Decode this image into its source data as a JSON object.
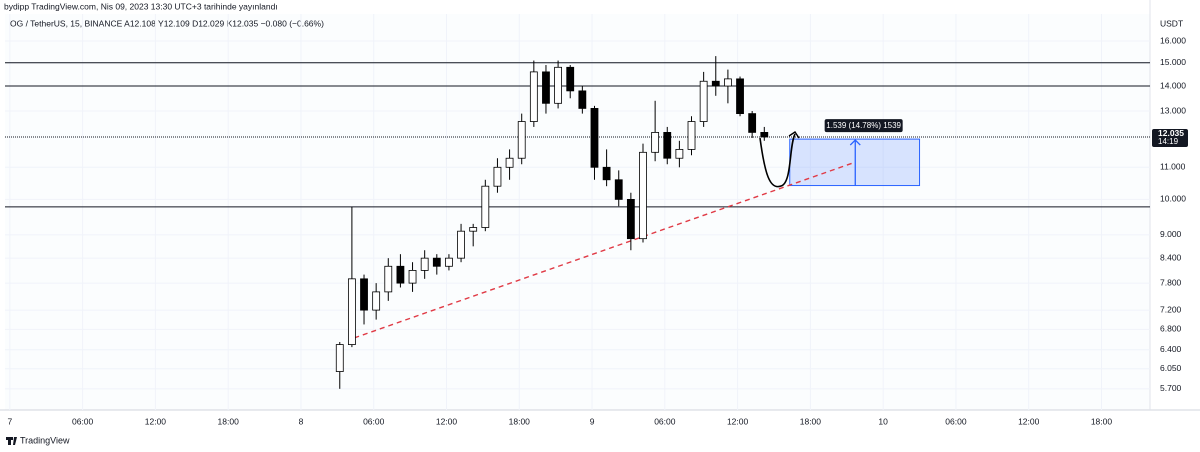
{
  "header": {
    "publisher": "bydipp TradingView.com, Nis 09, 2023 13:30 UTC+3 tarihinde yayınlandı",
    "symbol_line": "OG / TetherUS, 15, BINANCE  A12.108 Y12.109 D12.029 K12.035 −0.080 (−0.66%)"
  },
  "chart_data": {
    "type": "candlestick",
    "currency": "USDT",
    "log": true,
    "grid": true,
    "up_color": "#ffffff",
    "down_color": "#000000",
    "x": [
      27.2,
      28.2,
      29.2,
      30.2,
      31.2,
      32.2,
      33.2,
      34.2,
      35.2,
      36.2,
      37.2,
      38.2,
      39.2,
      40.2,
      41.2,
      42.2,
      43.2,
      44.2,
      45.2,
      46.2,
      47.2,
      48.2,
      49.2,
      50.2,
      51.2,
      52.2,
      53.2,
      54.2,
      55.2,
      56.2,
      57.2,
      58.2,
      59.2,
      60.2,
      61.2,
      62.2
    ],
    "open": [
      6.0,
      6.5,
      7.9,
      7.2,
      7.6,
      8.2,
      7.8,
      8.1,
      8.4,
      8.2,
      8.4,
      9.1,
      9.2,
      10.4,
      11.0,
      11.3,
      12.6,
      14.6,
      13.3,
      14.8,
      13.8,
      13.1,
      11.0,
      10.6,
      10.0,
      8.9,
      11.5,
      12.2,
      11.3,
      11.6,
      12.6,
      14.2,
      14.0,
      14.3,
      12.9,
      12.2
    ],
    "high": [
      6.55,
      9.78,
      8.0,
      7.8,
      8.4,
      8.5,
      8.3,
      8.6,
      8.5,
      8.5,
      9.3,
      9.3,
      10.6,
      11.3,
      11.6,
      12.9,
      15.1,
      14.9,
      15.1,
      14.9,
      14.0,
      13.2,
      11.6,
      10.9,
      10.2,
      11.8,
      13.4,
      12.4,
      11.9,
      12.8,
      14.6,
      15.3,
      14.7,
      14.4,
      13.0,
      12.4
    ],
    "low": [
      5.7,
      6.45,
      6.9,
      7.0,
      7.4,
      7.7,
      7.6,
      7.9,
      8.0,
      8.1,
      8.3,
      8.7,
      9.1,
      10.2,
      10.6,
      11.1,
      12.4,
      12.9,
      13.1,
      13.5,
      12.9,
      10.6,
      10.4,
      9.8,
      8.6,
      8.8,
      11.2,
      11.1,
      11.0,
      11.4,
      12.4,
      13.6,
      13.3,
      12.8,
      12.0,
      11.9
    ],
    "close": [
      6.5,
      7.9,
      7.2,
      7.6,
      8.2,
      7.8,
      8.1,
      8.4,
      8.2,
      8.4,
      9.1,
      9.2,
      10.4,
      11.0,
      11.3,
      12.6,
      14.6,
      13.3,
      14.8,
      13.8,
      13.1,
      11.0,
      10.6,
      10.0,
      8.9,
      11.5,
      12.2,
      11.3,
      11.6,
      12.6,
      14.2,
      14.0,
      14.3,
      12.9,
      12.2,
      12.035
    ],
    "xlim": [
      -0.4,
      94
    ],
    "xticks": [
      {
        "value": 0,
        "label": "7"
      },
      {
        "value": 6,
        "label": "06:00"
      },
      {
        "value": 12,
        "label": "12:00"
      },
      {
        "value": 18,
        "label": "18:00"
      },
      {
        "value": 24,
        "label": "8"
      },
      {
        "value": 30,
        "label": "06:00"
      },
      {
        "value": 36,
        "label": "12:00"
      },
      {
        "value": 42,
        "label": "18:00"
      },
      {
        "value": 48,
        "label": "9"
      },
      {
        "value": 54,
        "label": "06:00"
      },
      {
        "value": 60,
        "label": "12:00"
      },
      {
        "value": 66,
        "label": "18:00"
      },
      {
        "value": 72,
        "label": "10"
      },
      {
        "value": 78,
        "label": "06:00"
      },
      {
        "value": 84,
        "label": "12:00"
      },
      {
        "value": 90,
        "label": "18:00"
      }
    ],
    "ylim": [
      5.514,
      16.93
    ],
    "yticks": [
      {
        "value": 16,
        "label": "16.000"
      },
      {
        "value": 15,
        "label": "15.000"
      },
      {
        "value": 14,
        "label": "14.000"
      },
      {
        "value": 13,
        "label": "13.000"
      },
      {
        "value": 11,
        "label": "11.000"
      },
      {
        "value": 10,
        "label": "10.000"
      },
      {
        "value": 9,
        "label": "9.000"
      },
      {
        "value": 8.4,
        "label": "8.400"
      },
      {
        "value": 7.8,
        "label": "7.800"
      },
      {
        "value": 7.2,
        "label": "7.200"
      },
      {
        "value": 6.8,
        "label": "6.800"
      },
      {
        "value": 6.4,
        "label": "6.400"
      },
      {
        "value": 6.05,
        "label": "6.050"
      },
      {
        "value": 5.7,
        "label": "5.700"
      }
    ],
    "levels": [
      15,
      14,
      9.78
    ],
    "last_price": {
      "value": 12.035,
      "label": "12.035",
      "countdown": "14:19"
    },
    "trendline": {
      "x": [
        28.4,
        69.7
      ],
      "y": [
        6.63,
        11.17
      ],
      "color": "#e03a45"
    },
    "position": {
      "x": [
        64.3,
        75.0
      ],
      "top": 11.96,
      "bottom": 10.42,
      "arrow_x": 69.7,
      "label": "1.539 (14.78%) 1539",
      "color": "#2962ff"
    }
  },
  "footer": {
    "brand": "TradingView"
  }
}
